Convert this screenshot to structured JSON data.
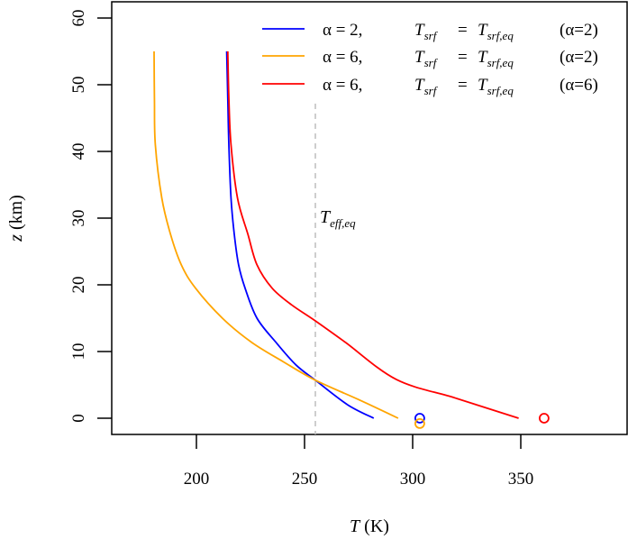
{
  "chart_data": {
    "type": "line",
    "title": "",
    "xlabel": "T (K)",
    "ylabel": "z (km)",
    "xlim": [
      160.8,
      399
    ],
    "ylim": [
      -2.4,
      62.5
    ],
    "xticks": [
      200,
      250,
      300,
      350
    ],
    "yticks": [
      0,
      10,
      20,
      30,
      40,
      50,
      60
    ],
    "grid": false,
    "legend_position": "top-right",
    "series": [
      {
        "name": "α = 2,  T_srf = T_srf,eq (α=2)",
        "color": "#0000ff",
        "points": [
          [
            282,
            0
          ],
          [
            270,
            2
          ],
          [
            255,
            5.7
          ],
          [
            246,
            8
          ],
          [
            236.7,
            11.4
          ],
          [
            228,
            15
          ],
          [
            222.5,
            19.5
          ],
          [
            219.5,
            23
          ],
          [
            217.5,
            27.6
          ],
          [
            216,
            33
          ],
          [
            215,
            41
          ],
          [
            214.5,
            48
          ],
          [
            214,
            55
          ]
        ],
        "surface_marker": [
          303.3,
          0
        ]
      },
      {
        "name": "α = 6,  T_srf = T_srf,eq (α=2)",
        "color": "#ffa500",
        "points": [
          [
            293.3,
            0
          ],
          [
            275,
            2.8
          ],
          [
            255,
            5.7
          ],
          [
            240,
            8.5
          ],
          [
            225.4,
            11.4
          ],
          [
            212,
            15
          ],
          [
            199.6,
            19.5
          ],
          [
            193,
            23
          ],
          [
            188,
            27.6
          ],
          [
            184,
            33
          ],
          [
            181,
            41
          ],
          [
            180.6,
            48
          ],
          [
            180.4,
            55
          ]
        ],
        "surface_marker": [
          303.3,
          -0.8
        ]
      },
      {
        "name": "α = 6,  T_srf = T_srf,eq (α=6)",
        "color": "#ff0000",
        "points": [
          [
            349,
            0
          ],
          [
            320,
            3
          ],
          [
            292.5,
            5.8
          ],
          [
            268.8,
            11.4
          ],
          [
            255,
            14.6
          ],
          [
            244,
            17
          ],
          [
            235,
            19.5
          ],
          [
            228,
            23
          ],
          [
            223.8,
            27.6
          ],
          [
            219,
            33
          ],
          [
            216,
            41
          ],
          [
            215,
            48
          ],
          [
            214.5,
            55
          ]
        ],
        "surface_marker": [
          360.8,
          0
        ]
      }
    ],
    "reference_line": {
      "label": "T_eff,eq",
      "x": 255,
      "z_top": 47.2,
      "color": "#bebebe",
      "style": "dashed"
    }
  },
  "axes": {
    "x_label_main": "T",
    "x_label_unit": "(K)",
    "y_label_main": "z",
    "y_label_unit": "(km)",
    "x_tick_labels": [
      "200",
      "250",
      "300",
      "350"
    ],
    "y_tick_labels": [
      "0",
      "10",
      "20",
      "30",
      "40",
      "50",
      "60"
    ]
  },
  "annotation": {
    "main": "T",
    "sub": "eff,eq"
  },
  "legend": [
    {
      "alpha": "α = 2,",
      "lhs": "T",
      "lhs_sub": "srf",
      "eq": "=",
      "rhs": "T",
      "rhs_sub": "srf,eq",
      "note": "(α=2)",
      "color": "#0000ff"
    },
    {
      "alpha": "α = 6,",
      "lhs": "T",
      "lhs_sub": "srf",
      "eq": "=",
      "rhs": "T",
      "rhs_sub": "srf,eq",
      "note": "(α=2)",
      "color": "#ffa500"
    },
    {
      "alpha": "α = 6,",
      "lhs": "T",
      "lhs_sub": "srf",
      "eq": "=",
      "rhs": "T",
      "rhs_sub": "srf,eq",
      "note": "(α=6)",
      "color": "#ff0000"
    }
  ]
}
